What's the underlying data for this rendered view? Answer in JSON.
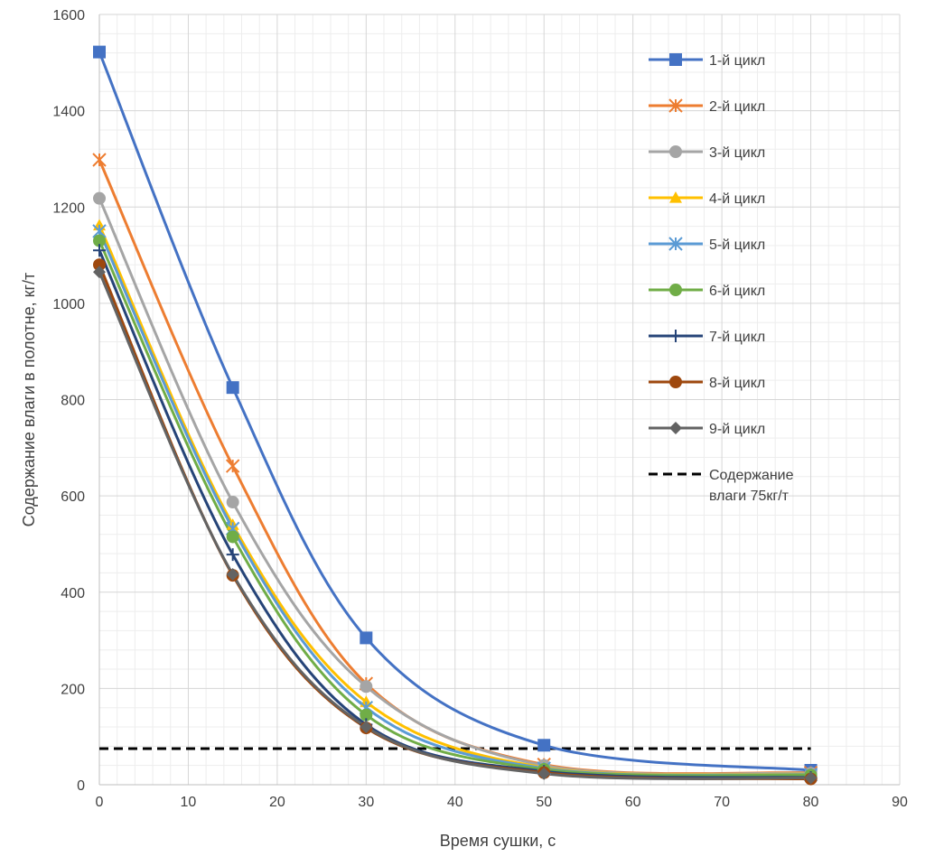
{
  "chart_data": {
    "type": "line",
    "title": "",
    "xlabel": "Время сушки, с",
    "ylabel": "Содержание влаги в полотне, кг/т",
    "xlim": [
      0,
      90
    ],
    "ylim": [
      0,
      1600
    ],
    "x_ticks": [
      0,
      10,
      20,
      30,
      40,
      50,
      60,
      70,
      80,
      90
    ],
    "y_ticks": [
      0,
      200,
      400,
      600,
      800,
      1000,
      1200,
      1400,
      1600
    ],
    "x_minor_step": 2,
    "y_minor_step": 40,
    "grid": true,
    "legend_position": "right",
    "x": [
      0,
      15,
      30,
      50,
      80
    ],
    "series": [
      {
        "name": "1-й цикл",
        "values": [
          1522,
          825,
          305,
          82,
          30
        ],
        "color": "#4472C4",
        "marker": "square"
      },
      {
        "name": "2-й цикл",
        "values": [
          1298,
          662,
          210,
          42,
          25
        ],
        "color": "#ED7D31",
        "marker": "star"
      },
      {
        "name": "3-й цикл",
        "values": [
          1218,
          587,
          204,
          40,
          24
        ],
        "color": "#A5A5A5",
        "marker": "circle"
      },
      {
        "name": "4-й цикл",
        "values": [
          1162,
          540,
          172,
          36,
          22
        ],
        "color": "#FFC000",
        "marker": "triangle"
      },
      {
        "name": "5-й цикл",
        "values": [
          1150,
          532,
          160,
          34,
          21
        ],
        "color": "#5B9BD5",
        "marker": "star"
      },
      {
        "name": "6-й цикл",
        "values": [
          1130,
          515,
          145,
          32,
          20
        ],
        "color": "#70AD47",
        "marker": "circle"
      },
      {
        "name": "7-й цикл",
        "values": [
          1110,
          478,
          125,
          28,
          15
        ],
        "color": "#264478",
        "marker": "plus"
      },
      {
        "name": "8-й цикл",
        "values": [
          1080,
          435,
          118,
          25,
          12
        ],
        "color": "#9E480E",
        "marker": "circle"
      },
      {
        "name": "9-й цикл",
        "values": [
          1065,
          437,
          120,
          23,
          14
        ],
        "color": "#636363",
        "marker": "diamond"
      }
    ],
    "reference_line": {
      "label_line1": "Содержание",
      "label_line2": "влаги 75кг/т",
      "y": 75,
      "x_range": [
        0,
        80
      ],
      "color": "#000000"
    }
  }
}
